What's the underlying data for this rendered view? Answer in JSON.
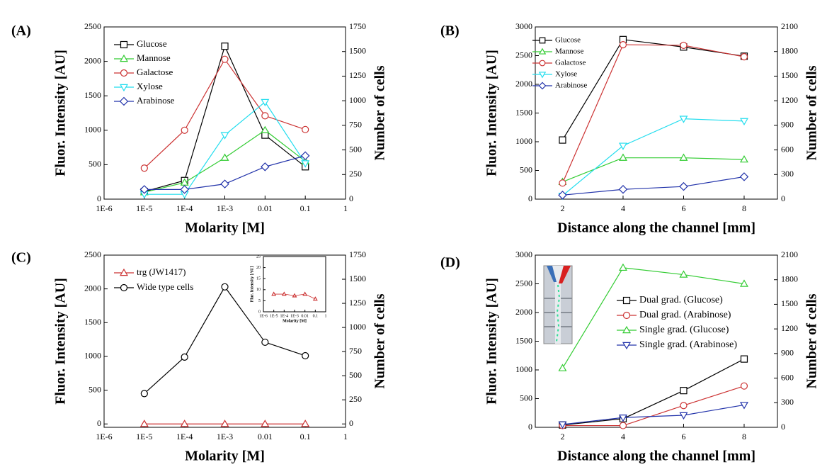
{
  "chart_data": [
    {
      "type": "line",
      "panel_label": "(A)",
      "xscale": "log",
      "x_label": "Molarity [M]",
      "y_label": "Fluor. Intensity [AU]",
      "y2_label": "Number of cells",
      "xlim": [
        1e-06,
        1
      ],
      "xticks": [
        {
          "value": 1e-06,
          "label": "1E-6"
        },
        {
          "value": 1e-05,
          "label": "1E-5"
        },
        {
          "value": 0.0001,
          "label": "1E-4"
        },
        {
          "value": 0.001,
          "label": "1E-3"
        },
        0.01,
        0.1,
        1
      ],
      "ylim": [
        0,
        2500
      ],
      "yticks": [
        0,
        500,
        1000,
        1500,
        2000,
        2500
      ],
      "y2lim": [
        0,
        1750
      ],
      "y2ticks": [
        0,
        250,
        500,
        750,
        1000,
        1250,
        1500,
        1750
      ],
      "legend": "upper left",
      "x": [
        1e-05,
        0.0001,
        0.001,
        0.01,
        0.1
      ],
      "series": [
        {
          "name": "Glucose",
          "color": "#000000",
          "marker": "square",
          "values": [
            110,
            270,
            2220,
            930,
            470
          ]
        },
        {
          "name": "Mannose",
          "color": "#33cc33",
          "marker": "triangle-up",
          "values": [
            100,
            240,
            600,
            1000,
            550
          ]
        },
        {
          "name": "Galactose",
          "color": "#cc3333",
          "marker": "circle",
          "values": [
            450,
            1000,
            2030,
            1210,
            1010
          ]
        },
        {
          "name": "Xylose",
          "color": "#22ddee",
          "marker": "triangle-down",
          "values": [
            70,
            70,
            930,
            1410,
            520
          ]
        },
        {
          "name": "Arabinose",
          "color": "#2233aa",
          "marker": "diamond",
          "values": [
            140,
            140,
            220,
            470,
            630
          ]
        }
      ]
    },
    {
      "type": "line",
      "panel_label": "(B)",
      "x_label": "Distance along the channel [mm]",
      "y_label": "Fluor. Intensity [AU]",
      "y2_label": "Number of cells",
      "xlim": [
        1.1,
        9.1
      ],
      "xticks": [
        2,
        4,
        6,
        8
      ],
      "ylim": [
        0,
        3000
      ],
      "yticks": [
        0,
        500,
        1000,
        1500,
        2000,
        2500,
        3000
      ],
      "y2lim": [
        0,
        2100
      ],
      "y2ticks": [
        0,
        300,
        600,
        900,
        1200,
        1500,
        1800,
        2100
      ],
      "legend": "upper left",
      "x": [
        2,
        4,
        6,
        8
      ],
      "series": [
        {
          "name": "Glucose",
          "color": "#000000",
          "marker": "square",
          "values": [
            1030,
            2780,
            2650,
            2490
          ]
        },
        {
          "name": "Mannose",
          "color": "#33cc33",
          "marker": "triangle-up",
          "values": [
            300,
            720,
            720,
            690
          ]
        },
        {
          "name": "Galactose",
          "color": "#cc3333",
          "marker": "circle",
          "values": [
            280,
            2690,
            2680,
            2480
          ]
        },
        {
          "name": "Xylose",
          "color": "#22ddee",
          "marker": "triangle-down",
          "values": [
            60,
            930,
            1400,
            1360
          ]
        },
        {
          "name": "Arabinose",
          "color": "#2233aa",
          "marker": "diamond",
          "values": [
            70,
            170,
            220,
            390
          ]
        }
      ]
    },
    {
      "type": "line",
      "panel_label": "(C)",
      "xscale": "log",
      "x_label": "Molarity [M]",
      "y_label": "Fluor. Intensity [AU]",
      "y2_label": "Number of cells",
      "xlim": [
        1e-06,
        1
      ],
      "xticks": [
        {
          "value": 1e-06,
          "label": "1E-6"
        },
        {
          "value": 1e-05,
          "label": "1E-5"
        },
        {
          "value": 0.0001,
          "label": "1E-4"
        },
        {
          "value": 0.001,
          "label": "1E-3"
        },
        0.01,
        0.1,
        1
      ],
      "ylim": [
        -50,
        2500
      ],
      "yticks": [
        0,
        500,
        1000,
        1500,
        2000,
        2500
      ],
      "y2lim": [
        -35,
        1750
      ],
      "y2ticks": [
        0,
        250,
        500,
        750,
        1000,
        1250,
        1500,
        1750
      ],
      "legend": "upper left",
      "x": [
        1e-05,
        0.0001,
        0.001,
        0.01,
        0.1
      ],
      "series": [
        {
          "name": "trg (JW1417)",
          "color": "#cc3333",
          "marker": "triangle-up",
          "values": [
            0,
            0,
            0,
            0,
            0
          ]
        },
        {
          "name": "Wide type cells",
          "color": "#000000",
          "marker": "circle",
          "values": [
            450,
            990,
            2030,
            1210,
            1010
          ]
        }
      ]
    },
    {
      "type": "line",
      "panel_label": "(D)",
      "x_label": "Distance along the channel [mm]",
      "y_label": "Fluor. Intensity [AU]",
      "y2_label": "Number of cells",
      "xlim": [
        1.1,
        9.1
      ],
      "xticks": [
        2,
        4,
        6,
        8
      ],
      "ylim": [
        0,
        3000
      ],
      "yticks": [
        0,
        500,
        1000,
        1500,
        2000,
        2500,
        3000
      ],
      "y2lim": [
        0,
        2100
      ],
      "y2ticks": [
        0,
        300,
        600,
        900,
        1200,
        1500,
        1800,
        2100
      ],
      "legend": "center right",
      "x": [
        2,
        4,
        6,
        8
      ],
      "series": [
        {
          "name": "Dual grad. (Glucose)",
          "color": "#000000",
          "marker": "square",
          "values": [
            40,
            150,
            640,
            1190
          ]
        },
        {
          "name": "Dual grad. (Arabinose)",
          "color": "#cc3333",
          "marker": "circle",
          "values": [
            30,
            30,
            380,
            720
          ]
        },
        {
          "name": "Single grad. (Glucose)",
          "color": "#33cc33",
          "marker": "triangle-up",
          "values": [
            1030,
            2780,
            2660,
            2500
          ]
        },
        {
          "name": "Single grad. (Arabinose)",
          "color": "#2233aa",
          "marker": "triangle-down",
          "values": [
            50,
            170,
            210,
            390
          ]
        }
      ]
    },
    {
      "type": "line",
      "xscale": "log",
      "x_label": "Molarity [M]",
      "y_label": "Flur. Intensity [AU]",
      "xlim": [
        1e-06,
        1
      ],
      "xticks": [
        {
          "value": 1e-06,
          "label": "1E-6"
        },
        {
          "value": 1e-05,
          "label": "1E-5"
        },
        {
          "value": 0.0001,
          "label": "1E-4"
        },
        {
          "value": 0.001,
          "label": "1E-3"
        },
        0.01,
        0.1,
        1
      ],
      "ylim": [
        0,
        25
      ],
      "yticks": [
        0,
        5,
        10,
        15,
        20,
        25
      ],
      "x": [
        1e-05,
        0.0001,
        0.001,
        0.01,
        0.1
      ],
      "series": [
        {
          "color": "#cc3333",
          "marker": "triangle-up",
          "values": [
            8,
            8,
            7.3,
            8,
            5.8
          ]
        }
      ]
    }
  ]
}
